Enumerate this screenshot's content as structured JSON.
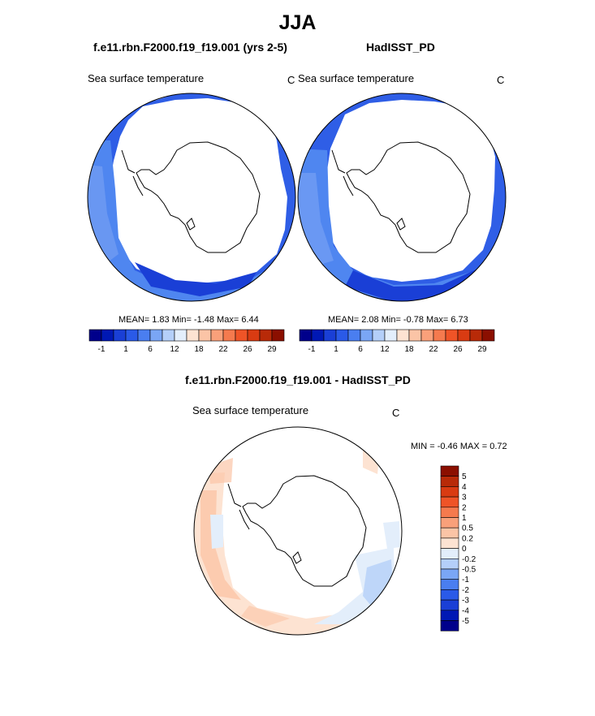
{
  "title": "JJA",
  "panels": [
    {
      "case": "f.e11.rbn.F2000.f19_f19.001 (yrs 2-5)",
      "variable": "Sea surface temperature",
      "units": "C",
      "stats": "MEAN=   1.83  Min=  -1.48  Max=   6.44"
    },
    {
      "case": "HadISST_PD",
      "variable": "Sea surface temperature",
      "units": "C",
      "stats": "MEAN=   2.08  Min=  -0.78  Max=   6.73"
    }
  ],
  "diff": {
    "title": "f.e11.rbn.F2000.f19_f19.001 - HadISST_PD",
    "variable": "Sea surface temperature",
    "units": "C",
    "stats": "MIN =  -0.46 MAX =   0.72"
  },
  "colorbar_abs": {
    "colors": [
      "#00008b",
      "#0018b4",
      "#1a3fd6",
      "#2a5ae8",
      "#4a7ef0",
      "#7aa6f5",
      "#b4cff9",
      "#e3eefb",
      "#fde3d2",
      "#fbc4a6",
      "#f9a07a",
      "#f57a4e",
      "#ef5427",
      "#d93b12",
      "#b82a08",
      "#8b0f00"
    ],
    "tick_labels": [
      "-1",
      "1",
      "6",
      "12",
      "18",
      "22",
      "26",
      "29"
    ]
  },
  "colorbar_diff": {
    "colors": [
      "#8b0f00",
      "#b82a08",
      "#d93b12",
      "#ef5427",
      "#f57a4e",
      "#f9a07a",
      "#fbc4a6",
      "#fde3d2",
      "#e3eefb",
      "#b4cff9",
      "#7aa6f5",
      "#4a7ef0",
      "#2a5ae8",
      "#1a3fd6",
      "#0018b4",
      "#00008b"
    ],
    "tick_labels": [
      "5",
      "4",
      "3",
      "2",
      "1",
      "0.5",
      "0.2",
      "0",
      "-0.2",
      "-0.5",
      "-1",
      "-2",
      "-3",
      "-4",
      "-5"
    ]
  }
}
